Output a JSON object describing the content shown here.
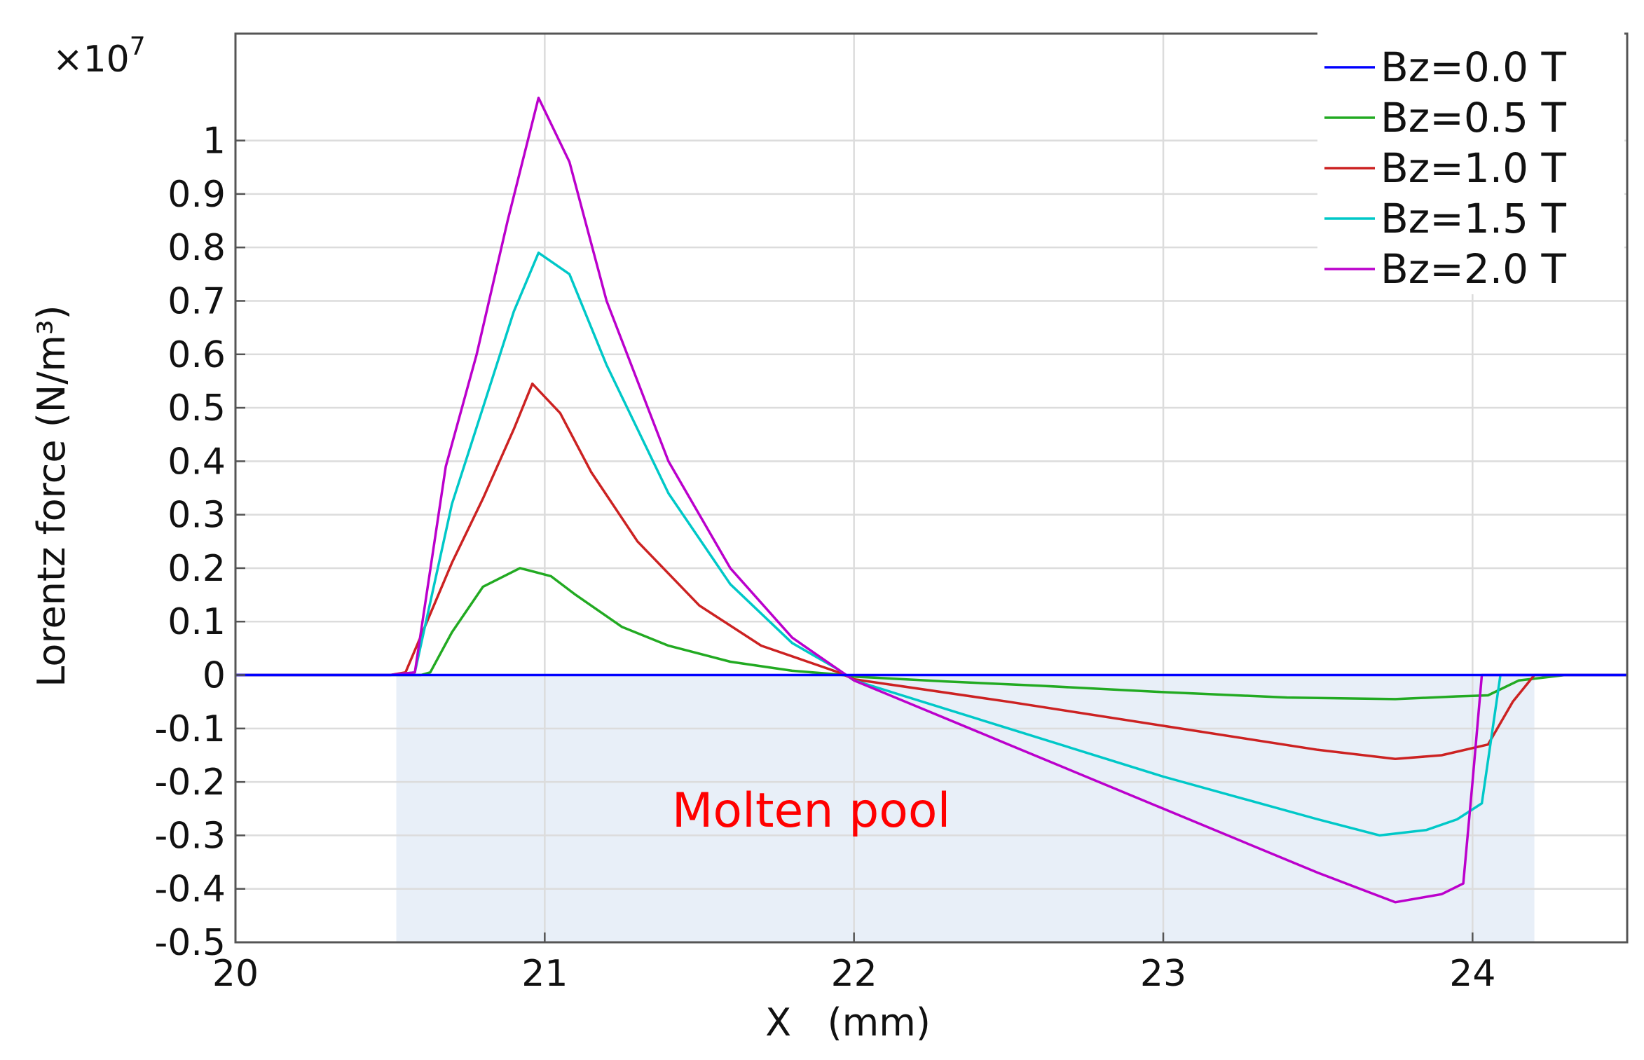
{
  "chart_data": {
    "type": "line",
    "title": "",
    "xlabel": "X   (mm)",
    "ylabel": "Lorentz force (N/m³)",
    "y_multiplier": "×10",
    "y_multiplier_exp": "7",
    "xlim": [
      20,
      24.5
    ],
    "ylim": [
      -0.5,
      1.2
    ],
    "x_ticks": [
      20,
      21,
      22,
      23,
      24
    ],
    "x_tick_labels": [
      "20",
      "21",
      "22",
      "23",
      "24"
    ],
    "y_ticks": [
      -0.5,
      -0.4,
      -0.3,
      -0.2,
      -0.1,
      0,
      0.1,
      0.2,
      0.3,
      0.4,
      0.5,
      0.6,
      0.7,
      0.8,
      0.9,
      1
    ],
    "y_tick_labels": [
      "-0.5",
      "-0.4",
      "-0.3",
      "-0.2",
      "-0.1",
      "0",
      "0.1",
      "0.2",
      "0.3",
      "0.4",
      "0.5",
      "0.6",
      "0.7",
      "0.8",
      "0.9",
      "1"
    ],
    "grid": true,
    "legend_position": "top-right",
    "shaded_region": {
      "x_start": 20.52,
      "x_end": 24.2,
      "label": "Molten pool",
      "color": "#e8eff8",
      "label_color": "#ff0000"
    },
    "series": [
      {
        "name": "Bz=0.0 T",
        "color": "#0000ff",
        "x": [
          20,
          20.5,
          21,
          21.5,
          22,
          22.5,
          23,
          23.5,
          24,
          24.5
        ],
        "y": [
          0,
          0,
          0,
          0,
          0,
          0,
          0,
          0,
          0,
          0
        ]
      },
      {
        "name": "Bz=0.5 T",
        "color": "#22aa22",
        "x": [
          20,
          20.5,
          20.6,
          20.63,
          20.7,
          20.8,
          20.92,
          21.02,
          21.1,
          21.25,
          21.4,
          21.6,
          21.8,
          21.95,
          22.0,
          22.3,
          22.6,
          23.0,
          23.4,
          23.75,
          23.95,
          24.05,
          24.15,
          24.3,
          24.5
        ],
        "y": [
          0,
          0,
          0,
          0.005,
          0.08,
          0.165,
          0.2,
          0.185,
          0.15,
          0.09,
          0.055,
          0.025,
          0.008,
          0.001,
          -0.003,
          -0.012,
          -0.02,
          -0.032,
          -0.042,
          -0.045,
          -0.04,
          -0.038,
          -0.01,
          0,
          0
        ]
      },
      {
        "name": "Bz=1.0 T",
        "color": "#cc2222",
        "x": [
          20,
          20.5,
          20.55,
          20.7,
          20.8,
          20.9,
          20.96,
          21.05,
          21.15,
          21.3,
          21.5,
          21.7,
          21.95,
          22.0,
          22.5,
          23.0,
          23.5,
          23.75,
          23.9,
          24.05,
          24.13,
          24.2,
          24.5
        ],
        "y": [
          0,
          0,
          0.005,
          0.21,
          0.33,
          0.46,
          0.545,
          0.49,
          0.38,
          0.25,
          0.13,
          0.055,
          0.005,
          -0.008,
          -0.05,
          -0.095,
          -0.14,
          -0.157,
          -0.15,
          -0.13,
          -0.05,
          0,
          0
        ]
      },
      {
        "name": "Bz=1.5 T",
        "color": "#00c8c8",
        "x": [
          20,
          20.5,
          20.58,
          20.7,
          20.8,
          20.9,
          20.98,
          21.08,
          21.2,
          21.4,
          21.6,
          21.8,
          21.95,
          22.0,
          22.5,
          23.0,
          23.5,
          23.7,
          23.85,
          23.95,
          24.03,
          24.09,
          24.15,
          24.5
        ],
        "y": [
          0,
          0,
          0.005,
          0.32,
          0.5,
          0.68,
          0.79,
          0.75,
          0.58,
          0.34,
          0.17,
          0.06,
          0.01,
          -0.01,
          -0.1,
          -0.19,
          -0.27,
          -0.3,
          -0.29,
          -0.27,
          -0.24,
          0,
          0,
          0
        ]
      },
      {
        "name": "Bz=2.0 T",
        "color": "#bb00cc",
        "x": [
          20,
          20.5,
          20.58,
          20.68,
          20.78,
          20.88,
          20.98,
          21.08,
          21.2,
          21.4,
          21.6,
          21.8,
          21.95,
          22.0,
          22.5,
          23.0,
          23.5,
          23.75,
          23.9,
          23.97,
          24.0,
          24.03,
          24.1,
          24.5
        ],
        "y": [
          0,
          0,
          0.005,
          0.39,
          0.6,
          0.85,
          1.08,
          0.96,
          0.7,
          0.4,
          0.2,
          0.07,
          0.01,
          -0.01,
          -0.13,
          -0.25,
          -0.37,
          -0.425,
          -0.41,
          -0.39,
          -0.2,
          0,
          0,
          0
        ]
      }
    ]
  }
}
